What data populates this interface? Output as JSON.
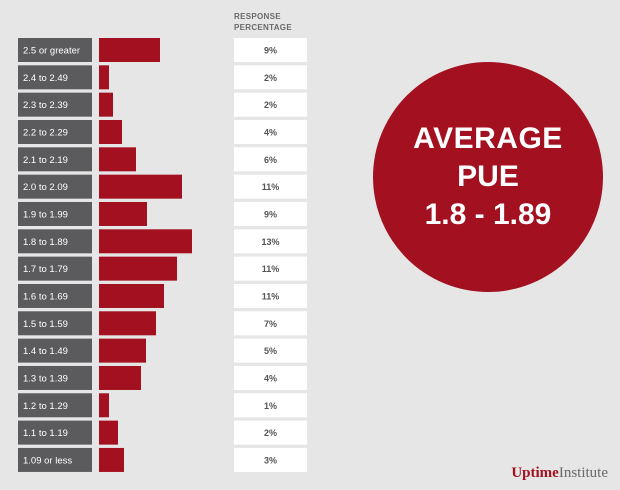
{
  "chart_data": {
    "type": "bar",
    "orientation": "horizontal",
    "column_header": "RESPONSE PERCENTAGE",
    "categories": [
      "2.5 or greater",
      "2.4 to 2.49",
      "2.3 to 2.39",
      "2.2 to 2.29",
      "2.1 to 2.19",
      "2.0 to 2.09",
      "1.9 to 1.99",
      "1.8 to 1.89",
      "1.7 to 1.79",
      "1.6 to 1.69",
      "1.5 to 1.59",
      "1.4 to 1.49",
      "1.3 to 1.39",
      "1.2 to 1.29",
      "1.1 to 1.19",
      "1.09 or less"
    ],
    "values": [
      9,
      2,
      2,
      4,
      6,
      11,
      9,
      13,
      11,
      11,
      7,
      5,
      4,
      1,
      2,
      3
    ],
    "bar_lengths_relative": [
      61,
      10,
      14,
      23,
      37,
      83,
      48,
      93,
      78,
      65,
      57,
      47,
      42,
      10,
      19,
      25
    ],
    "labels": [
      "9%",
      "2%",
      "2%",
      "4%",
      "6%",
      "11%",
      "9%",
      "13%",
      "11%",
      "11%",
      "7%",
      "5%",
      "4%",
      "1%",
      "2%",
      "3%"
    ],
    "unit": "%",
    "grid": false,
    "legend": "none"
  },
  "callout": {
    "line1": "AVERAGE",
    "line2": "PUE",
    "line3": "1.8 - 1.89"
  },
  "logo": {
    "part1": "Uptime",
    "part2": "Institute"
  },
  "colors": {
    "bar": "#a3101f",
    "category_box": "#5b5b5d",
    "value_box": "#ffffff",
    "background": "#e6e6e7"
  }
}
